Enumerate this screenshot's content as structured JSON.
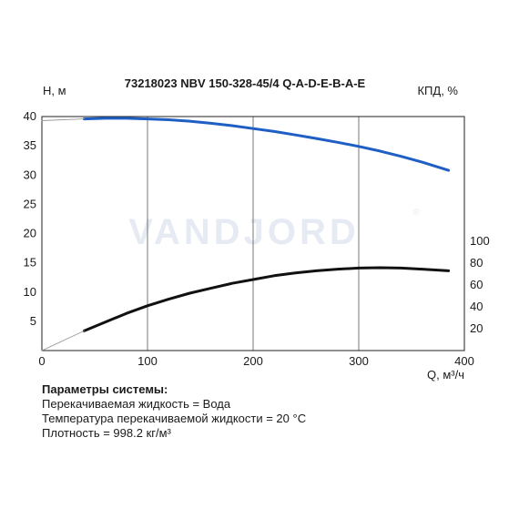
{
  "chart_data": {
    "type": "line",
    "title": "73218023 NBV 150-328-45/4 Q-A-D-E-B-A-E",
    "xlabel": "Q, м³/ч",
    "ylabel_left": "H, м",
    "ylabel_right": "КПД, %",
    "watermark": "VANDJORD",
    "grid": true,
    "xlim": [
      0,
      400
    ],
    "ylim_left": [
      0,
      40
    ],
    "ylim_right_axis_ticks": [
      20,
      40,
      60,
      80,
      100
    ],
    "x_ticks": [
      "0",
      "100",
      "200",
      "300",
      "400"
    ],
    "y_left_ticks": [
      "5",
      "10",
      "15",
      "20",
      "25",
      "30",
      "35",
      "40"
    ],
    "y_right_ticks": [
      "20",
      "40",
      "60",
      "80",
      "100"
    ],
    "series": [
      {
        "name": "H",
        "axis": "left",
        "color": "#1f5fc4",
        "x": [
          40,
          60,
          80,
          100,
          120,
          140,
          160,
          180,
          200,
          220,
          240,
          260,
          280,
          300,
          320,
          340,
          360,
          385
        ],
        "y": [
          39.6,
          39.7,
          39.7,
          39.6,
          39.45,
          39.2,
          38.85,
          38.45,
          37.95,
          37.45,
          36.85,
          36.25,
          35.6,
          34.9,
          34.1,
          33.2,
          32.2,
          30.8
        ]
      },
      {
        "name": "КПД",
        "axis": "right",
        "color": "#111111",
        "x": [
          40,
          60,
          80,
          100,
          120,
          140,
          160,
          180,
          200,
          220,
          240,
          260,
          280,
          300,
          320,
          340,
          360,
          385
        ],
        "y": [
          18,
          26,
          34,
          41,
          47,
          52.5,
          57,
          61.5,
          65,
          68.5,
          71,
          73,
          74.5,
          75.5,
          75.8,
          75.5,
          74.5,
          73
        ]
      },
      {
        "name": "H-extension",
        "axis": "left",
        "color": "#999999",
        "x": [
          0,
          40
        ],
        "y": [
          39.3,
          39.6
        ]
      },
      {
        "name": "КПД-extension",
        "axis": "right",
        "color": "#999999",
        "x": [
          0,
          40
        ],
        "y": [
          0,
          18
        ]
      }
    ]
  },
  "params": {
    "heading": "Параметры системы:",
    "lines": [
      "Перекачиваемая жидкость = Вода",
      "Температура перекачиваемой жидкости = 20 °C",
      "Плотность = 998.2 кг/м³"
    ]
  }
}
